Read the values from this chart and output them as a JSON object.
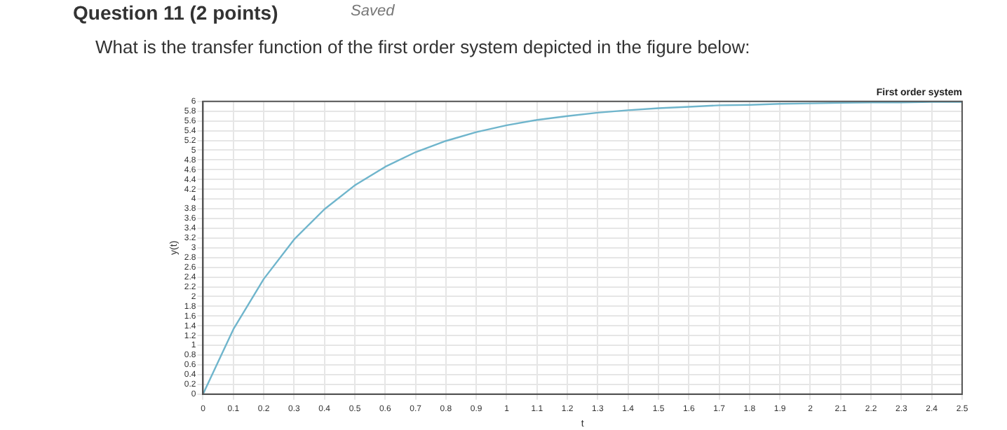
{
  "chart_data": {
    "type": "line",
    "title": "First order system",
    "xlabel": "t",
    "ylabel": "y(t)",
    "annotations": [
      "Question 11 (2 points)",
      "Saved",
      "What is the transfer function of the first order system depicted in the figure below:"
    ],
    "x": [
      0,
      0.1,
      0.2,
      0.3,
      0.4,
      0.5,
      0.6,
      0.7,
      0.8,
      0.9,
      1,
      1.1,
      1.2,
      1.3,
      1.4,
      1.5,
      1.6,
      1.7,
      1.8,
      1.9,
      2,
      2.1,
      2.2,
      2.3,
      2.4,
      2.5
    ],
    "series": [
      {
        "color": "#6fb5cc",
        "values": [
          0,
          1.33,
          2.36,
          3.17,
          3.79,
          4.28,
          4.66,
          4.96,
          5.19,
          5.37,
          5.51,
          5.62,
          5.7,
          5.77,
          5.82,
          5.86,
          5.89,
          5.92,
          5.93,
          5.95,
          5.96,
          5.97,
          5.98,
          5.98,
          5.99,
          5.99
        ]
      }
    ],
    "xlim": [
      0,
      2.5
    ],
    "xticks": [
      0,
      0.1,
      0.2,
      0.3,
      0.4,
      0.5,
      0.6,
      0.7,
      0.8,
      0.9,
      1,
      1.1,
      1.2,
      1.3,
      1.4,
      1.5,
      1.6,
      1.7,
      1.8,
      1.9,
      2,
      2.1,
      2.2,
      2.3,
      2.4,
      2.5
    ],
    "ylim": [
      0,
      6
    ],
    "yticks": [
      0,
      0.2,
      0.4,
      0.6,
      0.8,
      1,
      1.2,
      1.4,
      1.6,
      1.8,
      2,
      2.2,
      2.4,
      2.6,
      2.8,
      3,
      3.2,
      3.4,
      3.6,
      3.8,
      4,
      4.2,
      4.4,
      4.6,
      4.8,
      5,
      5.2,
      5.4,
      5.6,
      5.8,
      6
    ],
    "grid": true,
    "legend": false,
    "marker": "none",
    "line_style": "solid"
  }
}
